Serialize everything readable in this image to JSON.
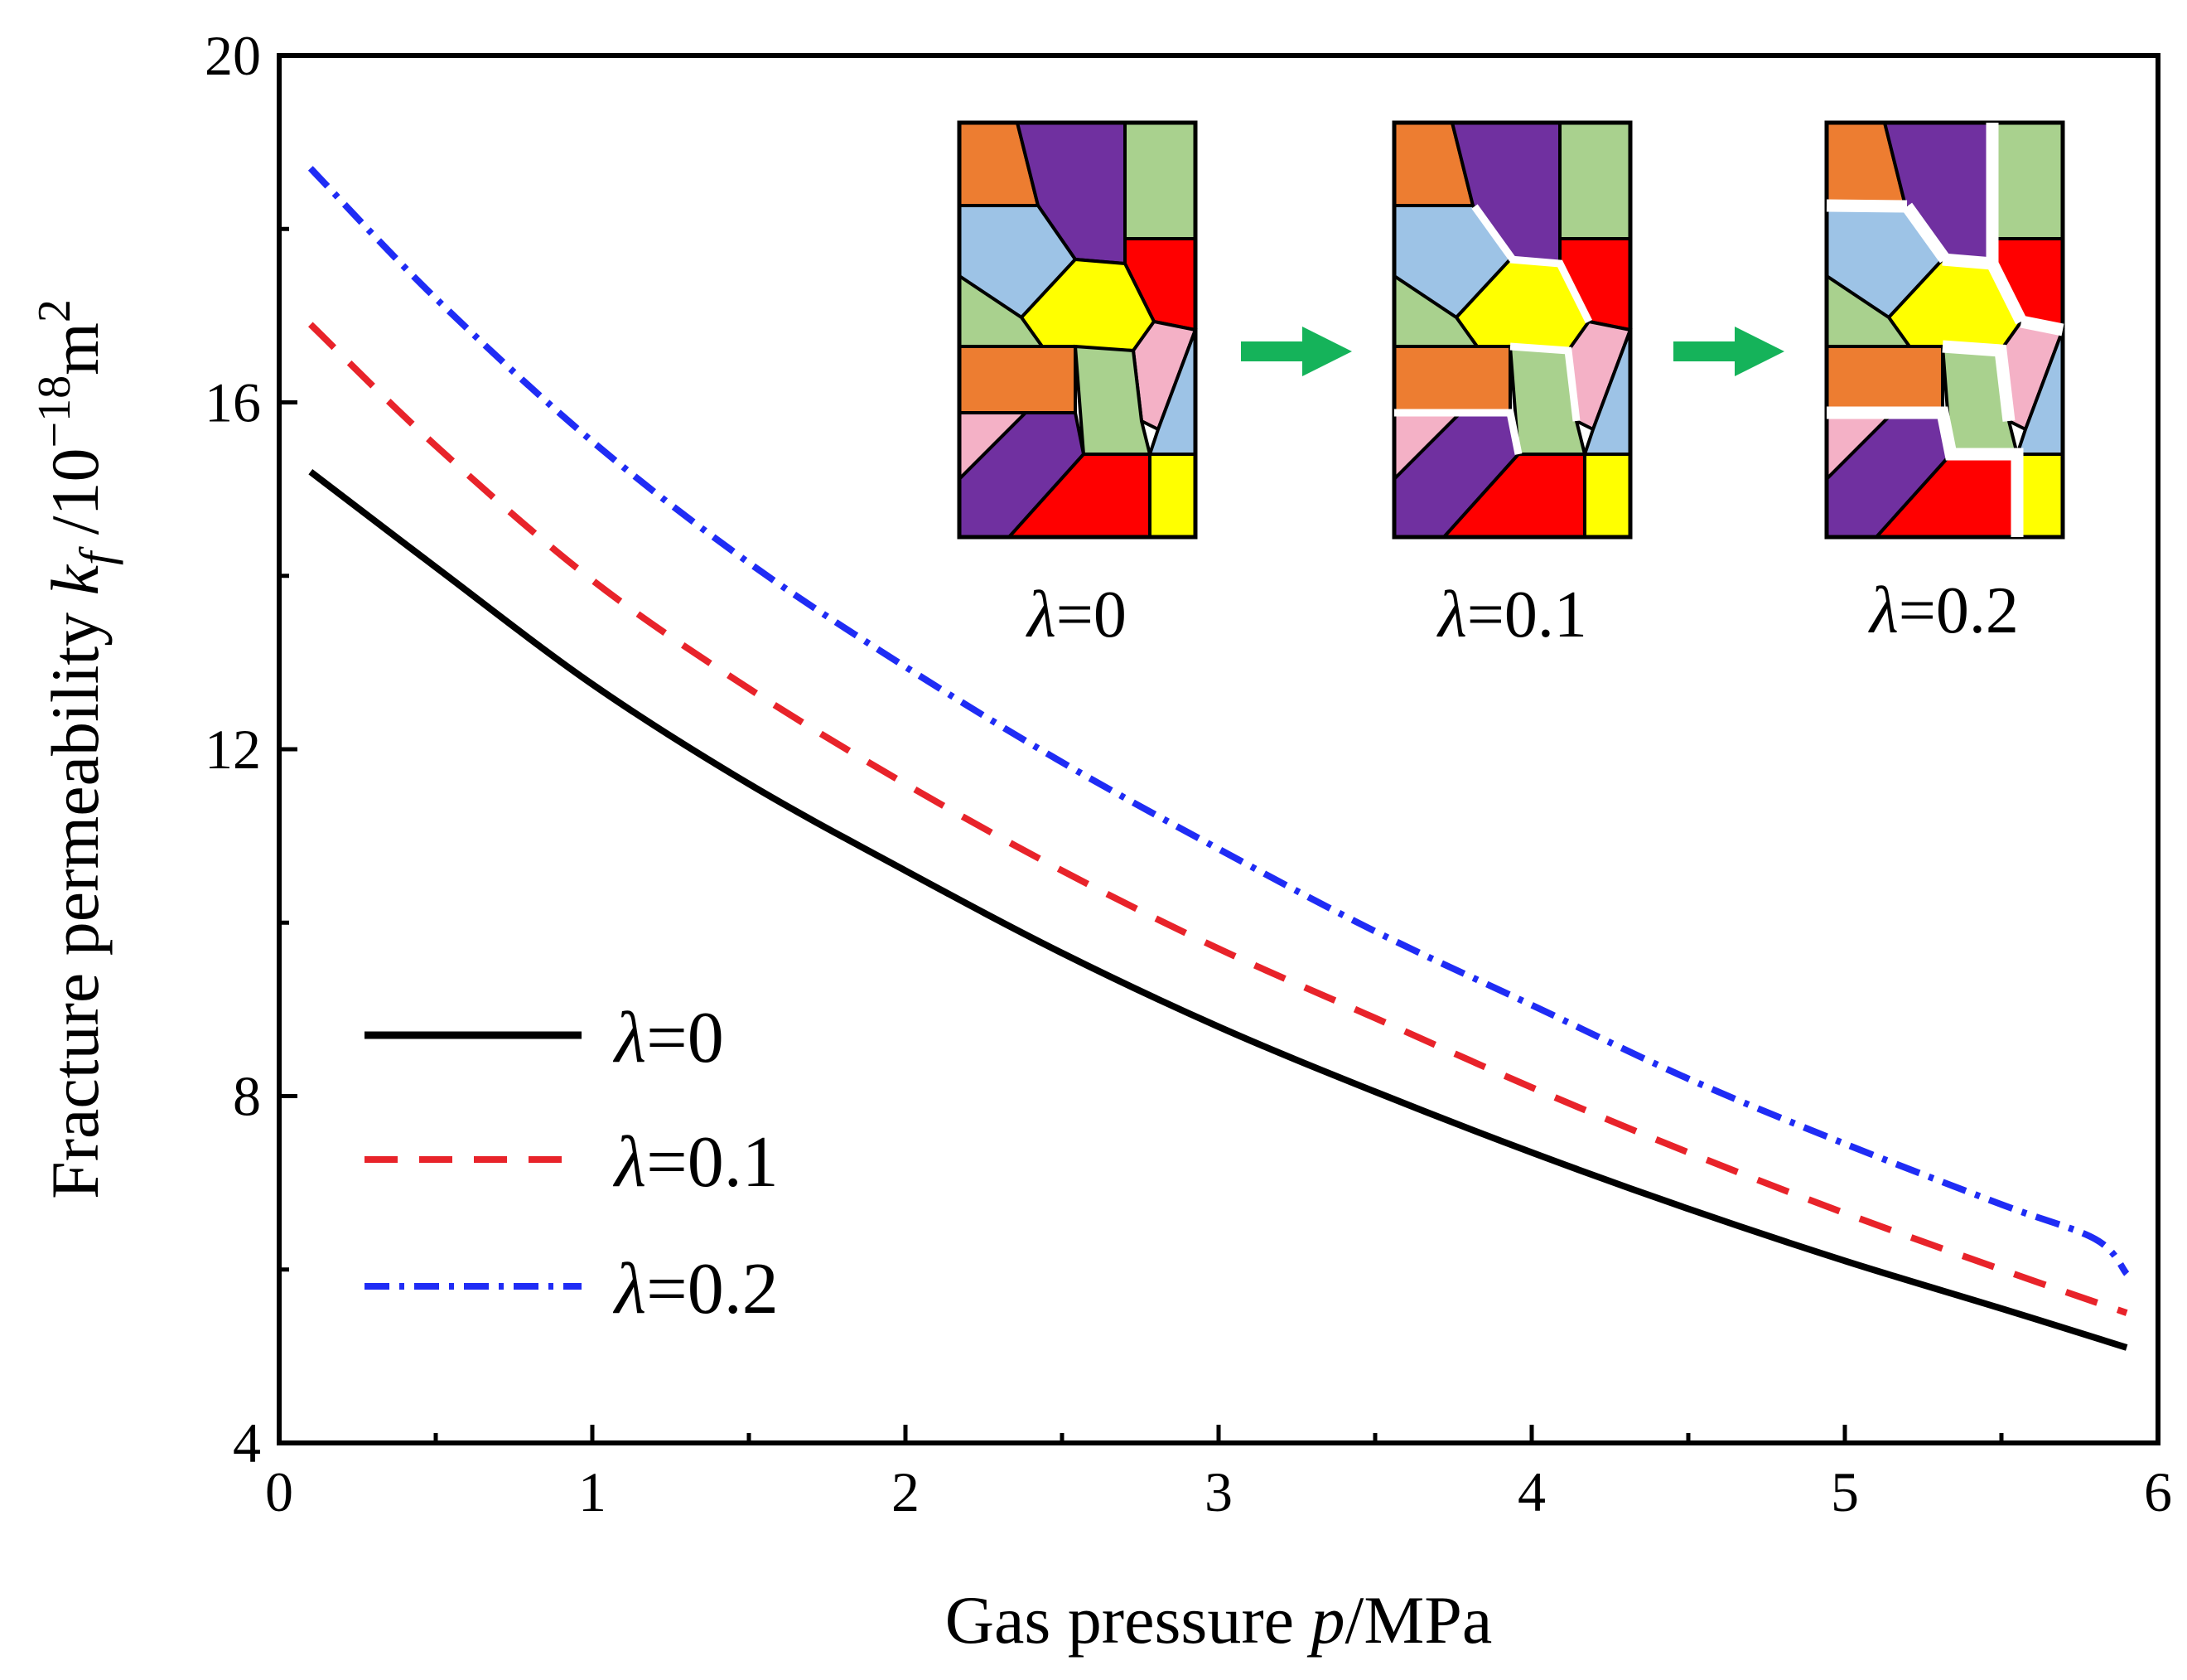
{
  "chart_data": {
    "type": "line",
    "xlabel_prefix": "Gas pressure ",
    "xlabel_var": "p",
    "xlabel_unit": "/MPa",
    "ylabel_prefix": "Fracture permeability ",
    "ylabel_var": "k",
    "ylabel_sub": "f",
    "ylabel_unit_base": " /10",
    "ylabel_unit_exp": "−18",
    "ylabel_unit_m": "m",
    "ylabel_unit_m_exp": "2",
    "xlim": [
      0,
      6
    ],
    "ylim": [
      4,
      20
    ],
    "x_ticks": [
      "0",
      "1",
      "2",
      "3",
      "4",
      "5",
      "6"
    ],
    "y_ticks": [
      "4",
      "8",
      "12",
      "16",
      "20"
    ],
    "series": [
      {
        "name": "λ=0",
        "lambda_symbol": "λ",
        "lambda_value": "=0",
        "color": "#000000",
        "style": "solid",
        "x": [
          0.1,
          0.5,
          1.0,
          1.5,
          2.0,
          2.5,
          3.0,
          3.5,
          4.0,
          4.5,
          5.0,
          5.5,
          5.9
        ],
        "values": [
          15.2,
          14.1,
          12.75,
          11.6,
          10.6,
          9.65,
          8.8,
          8.05,
          7.35,
          6.7,
          6.1,
          5.55,
          5.1
        ]
      },
      {
        "name": "λ=0.1",
        "lambda_symbol": "λ",
        "lambda_value": "=0.1",
        "color": "#e8232a",
        "style": "dashed",
        "x": [
          0.1,
          0.5,
          1.0,
          1.5,
          2.0,
          2.5,
          3.0,
          3.5,
          4.0,
          4.5,
          5.0,
          5.5,
          5.9
        ],
        "values": [
          16.9,
          15.5,
          13.95,
          12.7,
          11.6,
          10.6,
          9.7,
          8.9,
          8.1,
          7.35,
          6.65,
          6.0,
          5.5
        ]
      },
      {
        "name": "λ=0.2",
        "lambda_symbol": "λ",
        "lambda_value": "=0.2",
        "color": "#1f2cf5",
        "style": "dashdot",
        "x": [
          0.1,
          0.5,
          1.0,
          1.5,
          2.0,
          2.5,
          3.0,
          3.5,
          4.0,
          4.5,
          5.0,
          5.5,
          5.8,
          5.9
        ],
        "values": [
          18.7,
          17.2,
          15.55,
          14.15,
          12.95,
          11.85,
          10.85,
          9.9,
          9.05,
          8.2,
          7.45,
          6.75,
          6.35,
          5.95
        ]
      }
    ],
    "legend_position": "bottom-left",
    "inset": {
      "panels": [
        {
          "symbol": "λ",
          "value": "=0"
        },
        {
          "symbol": "λ",
          "value": "=0.1"
        },
        {
          "symbol": "λ",
          "value": "=0.2"
        }
      ],
      "arrow_color": "#15b35a",
      "colors": {
        "orange": "#ed7d31",
        "purple": "#7030a0",
        "green": "#a9d18e",
        "blue": "#9dc3e6",
        "red": "#ff0000",
        "yellow": "#ffff00",
        "pink": "#f4b1c6"
      }
    }
  }
}
